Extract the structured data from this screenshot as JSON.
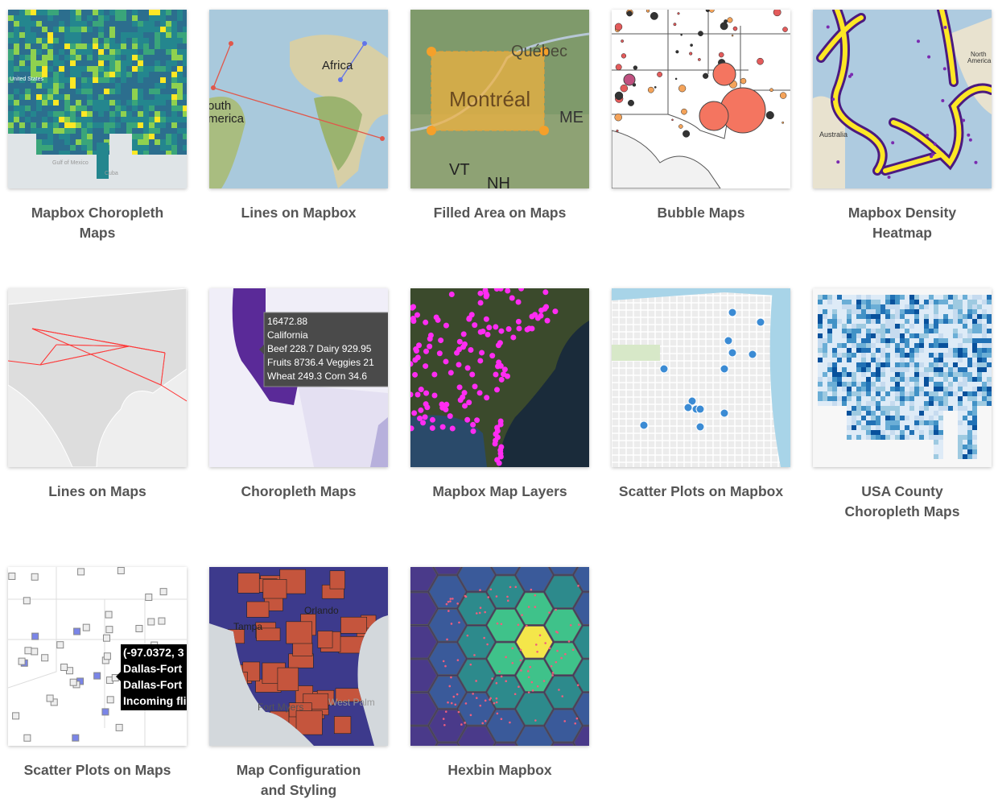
{
  "cards": [
    {
      "title": "Mapbox Choropleth Maps",
      "image_text": [
        "United States",
        "Gulf of Mexico",
        "Cuba"
      ]
    },
    {
      "title": "Lines on Mapbox",
      "image_text": [
        "Africa",
        "outh",
        "merica"
      ]
    },
    {
      "title": "Filled Area on Maps",
      "image_text": [
        "Québec",
        "Montréal",
        "ME",
        "VT",
        "NH"
      ]
    },
    {
      "title": "Bubble Maps",
      "image_text": []
    },
    {
      "title": "Mapbox Density Heatmap",
      "image_text": [
        "North",
        "America",
        "Australia"
      ]
    },
    {
      "title": "Lines on Maps",
      "image_text": []
    },
    {
      "title": "Choropleth Maps",
      "image_text": [
        "16472.88",
        "California",
        "Beef 228.7 Dairy 929.95",
        "Fruits 8736.4 Veggies 21",
        "Wheat 249.3 Corn 34.6"
      ]
    },
    {
      "title": "Mapbox Map Layers",
      "image_text": []
    },
    {
      "title": "Scatter Plots on Mapbox",
      "image_text": []
    },
    {
      "title": "USA County Choropleth Maps",
      "image_text": []
    },
    {
      "title": "Scatter Plots on Maps",
      "image_text": [
        "(-97.0372, 3",
        "Dallas-Fort",
        "Dallas-Fort",
        "Incoming fli"
      ]
    },
    {
      "title": "Map Configuration and Styling",
      "image_text": [
        "Orlando",
        "Tampa",
        "Fort Myers",
        "West Palm"
      ]
    },
    {
      "title": "Hexbin Mapbox",
      "image_text": []
    }
  ]
}
